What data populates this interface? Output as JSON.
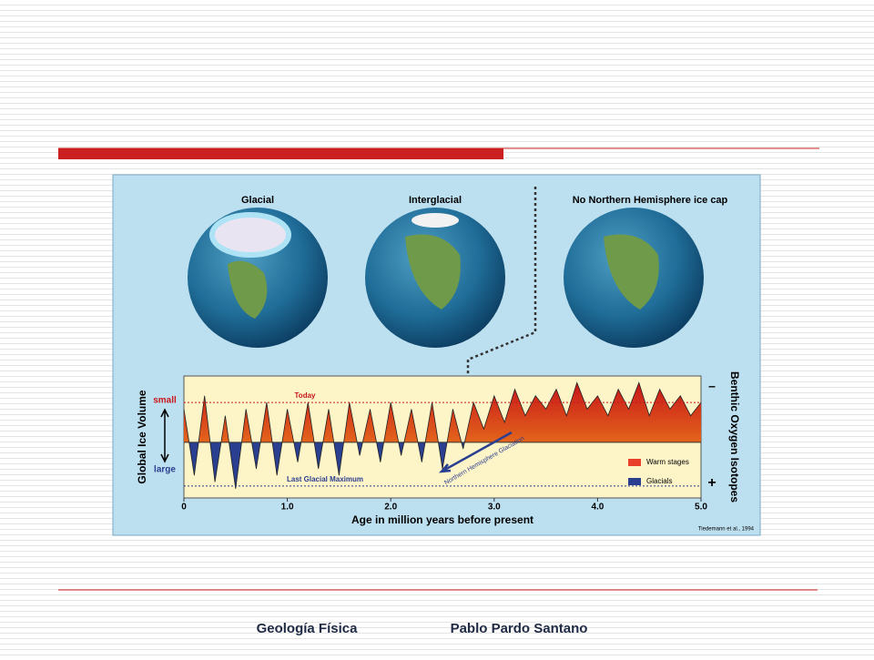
{
  "figure": {
    "globes": [
      {
        "label": "Glacial"
      },
      {
        "label": "Interglacial"
      },
      {
        "label": "No Northern Hemisphere ice cap"
      }
    ],
    "chart_data": {
      "type": "area",
      "x_label": "Age in million years before present",
      "y_label": "Global Ice Volume",
      "y_label_top": "small",
      "y_label_bottom": "large",
      "y2_label": "Benthic Oxygen Isotopes",
      "y2_label_top": "–",
      "y2_label_bottom": "+",
      "annotations": {
        "today": {
          "text": "Today",
          "value": 0.6
        },
        "lgm": {
          "text": "Last Glacial Maximum",
          "value": -0.66
        },
        "glaciation": "Northern Hemisphere Glaciation"
      },
      "legend": [
        {
          "name": "Warm stages",
          "color": "#e8402a"
        },
        {
          "name": "Glacials",
          "color": "#2a3f8f"
        }
      ],
      "credit": "Tiedemann et al., 1994",
      "xlim": [
        0,
        5
      ],
      "xticks": [
        0,
        {
          "value": 1,
          "label": "1.0"
        },
        {
          "value": 2,
          "label": "2.0"
        },
        {
          "value": 3,
          "label": "3.0"
        },
        {
          "value": 4,
          "label": "4.0"
        },
        {
          "value": 5,
          "label": "5.0"
        }
      ],
      "ylim": [
        -0.84,
        1.0
      ],
      "x": [
        0,
        0.1,
        0.2,
        0.3,
        0.4,
        0.5,
        0.6,
        0.7,
        0.8,
        0.9,
        1.0,
        1.1,
        1.2,
        1.3,
        1.4,
        1.5,
        1.6,
        1.7,
        1.8,
        1.9,
        2.0,
        2.1,
        2.2,
        2.3,
        2.4,
        2.5,
        2.6,
        2.7,
        2.8,
        2.9,
        3.0,
        3.1,
        3.2,
        3.3,
        3.4,
        3.5,
        3.6,
        3.7,
        3.8,
        3.9,
        4.0,
        4.1,
        4.2,
        4.3,
        4.4,
        4.5,
        4.6,
        4.7,
        4.8,
        4.9,
        5.0
      ],
      "values": [
        0.5,
        -0.5,
        0.7,
        -0.6,
        0.4,
        -0.7,
        0.5,
        -0.4,
        0.6,
        -0.5,
        0.5,
        -0.3,
        0.6,
        -0.4,
        0.5,
        -0.5,
        0.6,
        -0.2,
        0.5,
        -0.3,
        0.6,
        -0.2,
        0.5,
        -0.3,
        0.6,
        -0.4,
        0.5,
        -0.1,
        0.6,
        0.2,
        0.7,
        0.3,
        0.8,
        0.4,
        0.7,
        0.5,
        0.8,
        0.4,
        0.9,
        0.5,
        0.7,
        0.4,
        0.8,
        0.5,
        0.9,
        0.4,
        0.8,
        0.5,
        0.7,
        0.4,
        0.6
      ]
    }
  },
  "footer": {
    "course": "Geología Física",
    "author": "Pablo Pardo Santano"
  }
}
